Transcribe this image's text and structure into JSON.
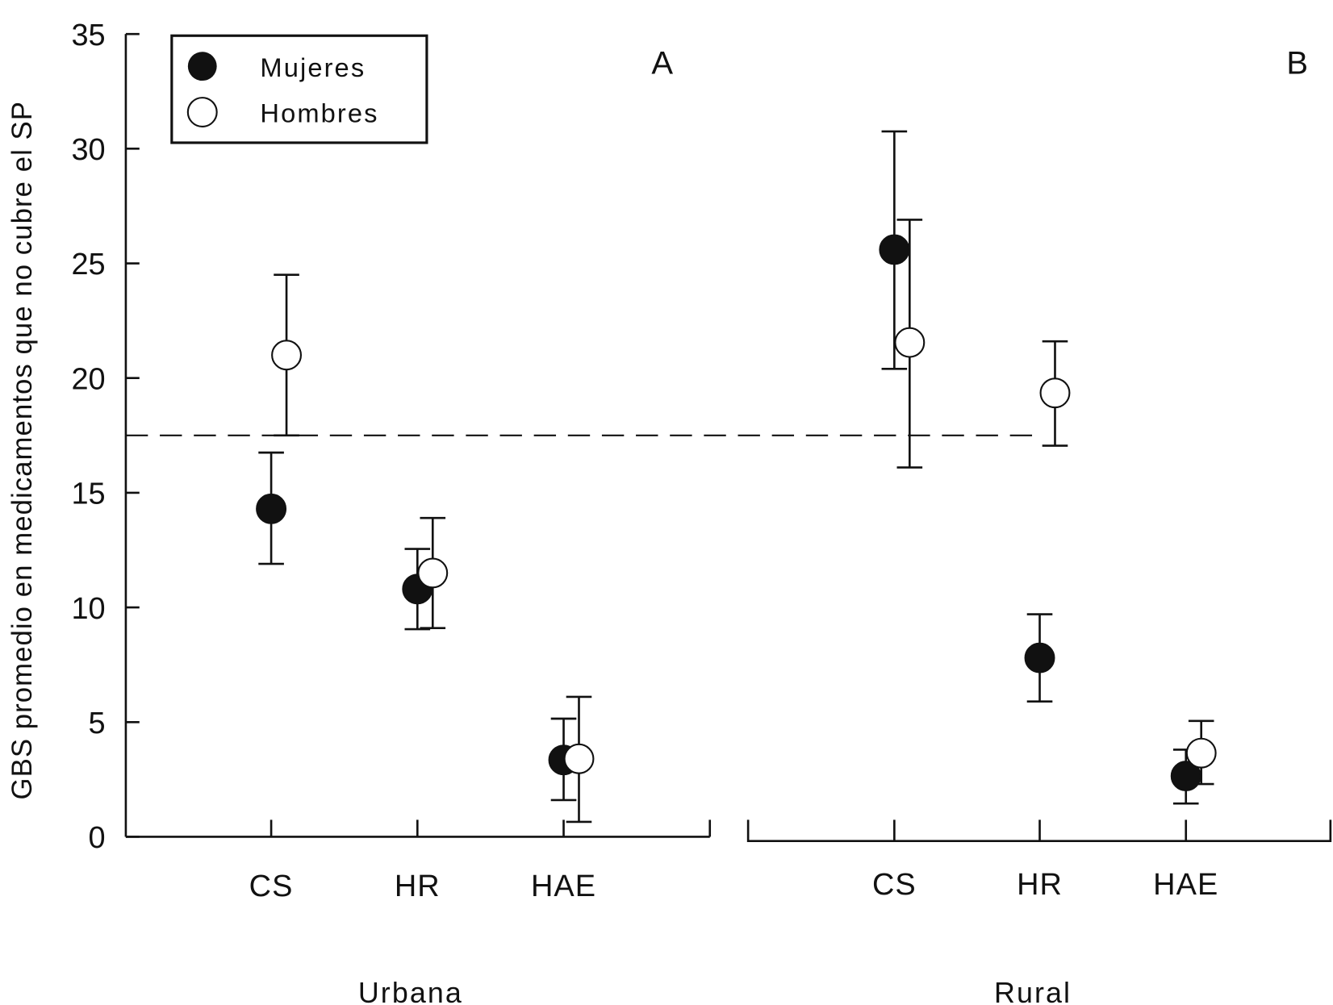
{
  "chart_data": {
    "type": "scatter",
    "ylabel": "GBS promedio en medicamentos que no cubre el SP",
    "ylim": [
      0,
      35
    ],
    "yticks": [
      "0",
      "5",
      "10",
      "15",
      "20",
      "25",
      "30",
      "35"
    ],
    "reference_line": {
      "y": 17.5,
      "style": "dashed"
    },
    "legend": {
      "placement": "top-left",
      "entries": [
        {
          "label": "Mujeres",
          "marker": "filled-circle",
          "color": "#111111"
        },
        {
          "label": "Hombres",
          "marker": "open-circle",
          "color": "#ffffff"
        }
      ]
    },
    "panels": [
      {
        "panel_label": "A",
        "group_label": "Urbana",
        "categories": [
          "CS",
          "HR",
          "HAE"
        ],
        "series": [
          {
            "name": "Mujeres",
            "values": [
              14.3,
              10.8,
              3.35
            ],
            "err_low": [
              11.9,
              9.05,
              1.6
            ],
            "err_high": [
              16.75,
              12.55,
              5.15
            ]
          },
          {
            "name": "Hombres",
            "values": [
              21.0,
              11.5,
              3.4
            ],
            "err_low": [
              17.5,
              9.1,
              0.65
            ],
            "err_high": [
              24.5,
              13.9,
              6.1
            ]
          }
        ]
      },
      {
        "panel_label": "B",
        "group_label": "Rural",
        "categories": [
          "CS",
          "HR",
          "HAE"
        ],
        "series": [
          {
            "name": "Mujeres",
            "values": [
              25.6,
              7.8,
              2.65
            ],
            "err_low": [
              20.4,
              5.9,
              1.45
            ],
            "err_high": [
              30.75,
              9.7,
              3.8
            ]
          },
          {
            "name": "Hombres",
            "values": [
              21.55,
              19.35,
              3.65
            ],
            "err_low": [
              16.1,
              17.05,
              2.3
            ],
            "err_high": [
              26.9,
              21.6,
              5.05
            ]
          }
        ]
      }
    ]
  }
}
